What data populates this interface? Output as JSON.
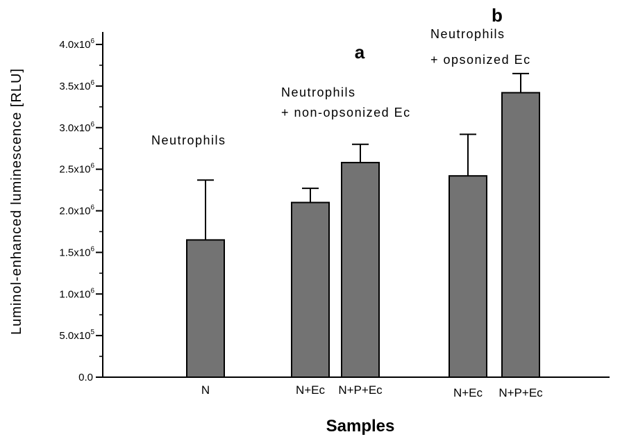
{
  "chart_data": {
    "type": "bar",
    "title": "",
    "xlabel": "Samples",
    "ylabel": "Luminol-enhanced luminescence [RLU]",
    "ylim": [
      0,
      4000000
    ],
    "yticks": [
      0,
      500000,
      1000000,
      1500000,
      2000000,
      2500000,
      3000000,
      3500000,
      4000000
    ],
    "ytick_labels": [
      {
        "mantissa": "0.0",
        "exp": ""
      },
      {
        "mantissa": "5.0x10",
        "exp": "5"
      },
      {
        "mantissa": "1.0x10",
        "exp": "6"
      },
      {
        "mantissa": "1.5x10",
        "exp": "6"
      },
      {
        "mantissa": "2.0x10",
        "exp": "6"
      },
      {
        "mantissa": "2.5x10",
        "exp": "6"
      },
      {
        "mantissa": "3.0x10",
        "exp": "6"
      },
      {
        "mantissa": "3.5x10",
        "exp": "6"
      },
      {
        "mantissa": "4.0x10",
        "exp": "6"
      }
    ],
    "categories": [
      "N",
      "N+Ec",
      "N+P+Ec",
      "N+Ec",
      "N+P+Ec"
    ],
    "values": [
      1650000,
      2100000,
      2580000,
      2420000,
      3420000
    ],
    "error_upper": [
      720000,
      170000,
      220000,
      500000,
      230000
    ],
    "bar_color": "#737373",
    "grid": false,
    "annotations": [
      {
        "id": "neutrophils",
        "lines": [
          "Neutrophils"
        ]
      },
      {
        "id": "non-opsonized",
        "lines": [
          "Neutrophils",
          "+ non-opsonized Ec"
        ]
      },
      {
        "id": "opsonized",
        "lines": [
          "Neutrophils",
          "+  opsonized Ec"
        ]
      },
      {
        "id": "letter-a",
        "lines": [
          "a"
        ]
      },
      {
        "id": "letter-b",
        "lines": [
          "b"
        ]
      }
    ]
  }
}
